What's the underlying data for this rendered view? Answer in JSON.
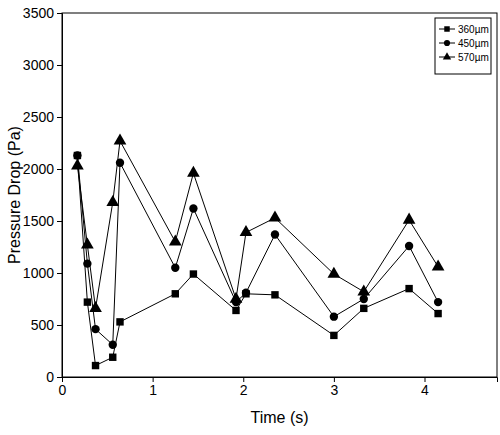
{
  "chart_data": {
    "type": "line",
    "x_label": "Time (s)",
    "y_label": "Pressure Drop (Pa)",
    "x": [
      0.17,
      0.28,
      0.37,
      0.56,
      0.64,
      1.25,
      1.45,
      1.92,
      2.03,
      2.35,
      3.0,
      3.33,
      3.83,
      4.15
    ],
    "series": [
      {
        "name": "360µm",
        "color": "#000000",
        "marker": "square",
        "line_style": "solid",
        "values": [
          2130,
          720,
          110,
          190,
          530,
          800,
          990,
          640,
          800,
          790,
          400,
          660,
          850,
          610
        ]
      },
      {
        "name": "450µm",
        "color": "#000000",
        "marker": "circle",
        "line_style": "solid",
        "values": [
          2130,
          1090,
          460,
          310,
          2060,
          1050,
          1620,
          720,
          810,
          1370,
          580,
          750,
          1260,
          720
        ]
      },
      {
        "name": "570µm",
        "color": "#000000",
        "marker": "triangle",
        "line_style": "solid",
        "values": [
          2030,
          1270,
          660,
          1680,
          2270,
          1300,
          1960,
          750,
          1390,
          1530,
          990,
          820,
          1510,
          1060
        ]
      }
    ],
    "xlim": [
      0,
      4.8
    ],
    "xticks": [
      0,
      1,
      2,
      3,
      4
    ],
    "ylim": [
      0,
      3500
    ],
    "yticks": [
      0,
      500,
      1000,
      1500,
      2000,
      2500,
      3000,
      3500
    ],
    "grid": false,
    "legend": "upper right"
  }
}
